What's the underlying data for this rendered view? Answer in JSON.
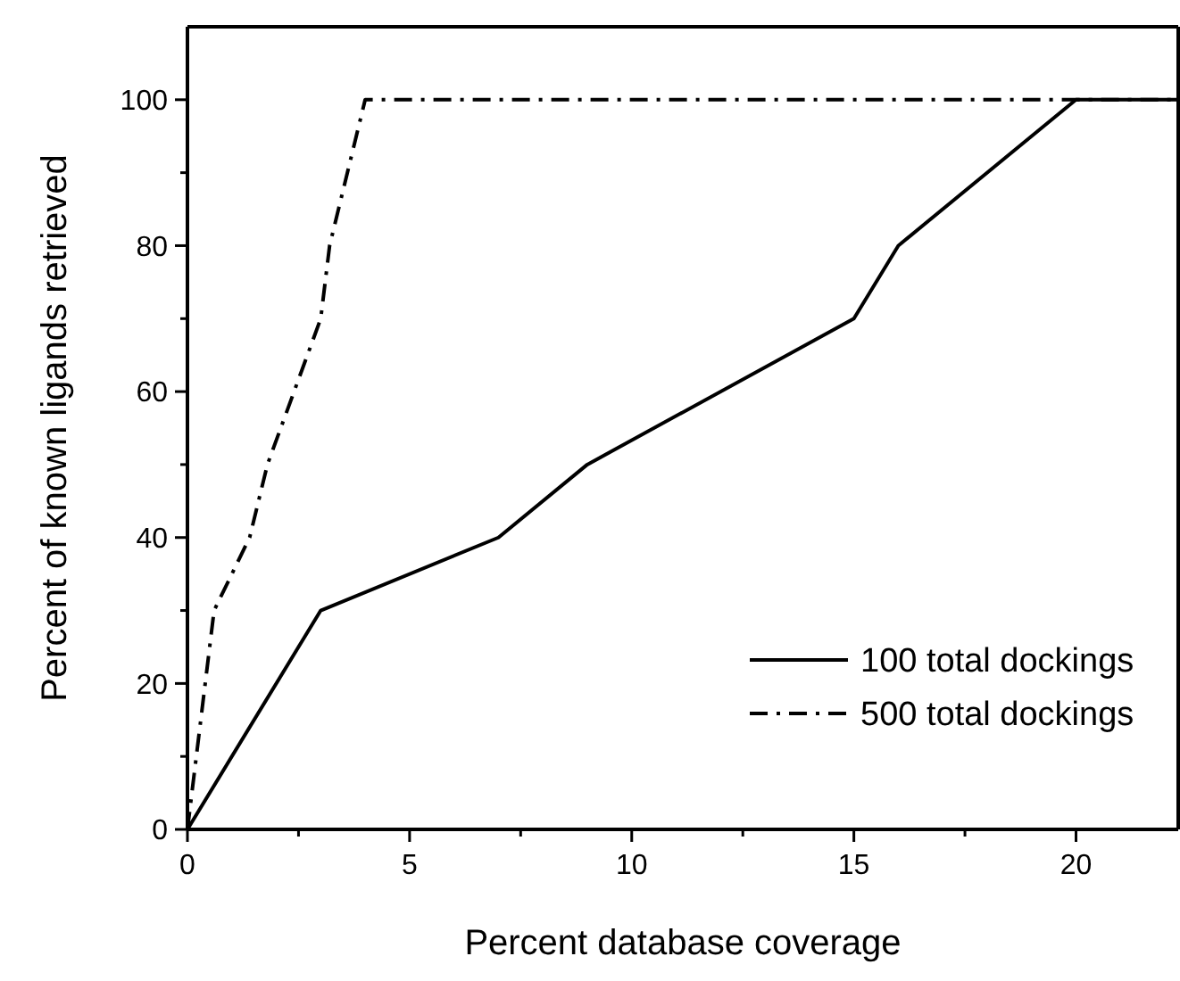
{
  "chart_data": {
    "type": "line",
    "xlabel": "Percent database coverage",
    "ylabel": "Percent of known ligands retrieved",
    "xlim": [
      0,
      22.3
    ],
    "ylim": [
      0,
      110
    ],
    "xticks": [
      0,
      {
        "value": 2.5,
        "label": null
      },
      5,
      {
        "value": 7.5,
        "label": null
      },
      10,
      {
        "value": 12.5,
        "label": null
      },
      15,
      {
        "value": 17.5,
        "label": null
      },
      20
    ],
    "yticks": [
      0,
      {
        "value": 10,
        "label": null
      },
      20,
      {
        "value": 30,
        "label": null
      },
      40,
      {
        "value": 50,
        "label": null
      },
      60,
      {
        "value": 70,
        "label": null
      },
      80,
      {
        "value": 90,
        "label": null
      },
      100
    ],
    "grid": false,
    "legend": "bottom right",
    "marker": "none",
    "series": [
      {
        "name": "100 total dockings",
        "color": "#000000",
        "line_style": "solid",
        "x": [
          0,
          3,
          7,
          9,
          15,
          16,
          20,
          22.3
        ],
        "values": [
          0,
          30,
          40,
          50,
          70,
          80,
          100,
          100
        ]
      },
      {
        "name": "500 total dockings",
        "color": "#000000",
        "line_style": "dashdot",
        "x": [
          0,
          0.6,
          1.4,
          1.8,
          3,
          3.2,
          4,
          22.3
        ],
        "values": [
          0,
          30,
          40,
          50,
          70,
          80,
          100,
          100
        ]
      }
    ]
  }
}
